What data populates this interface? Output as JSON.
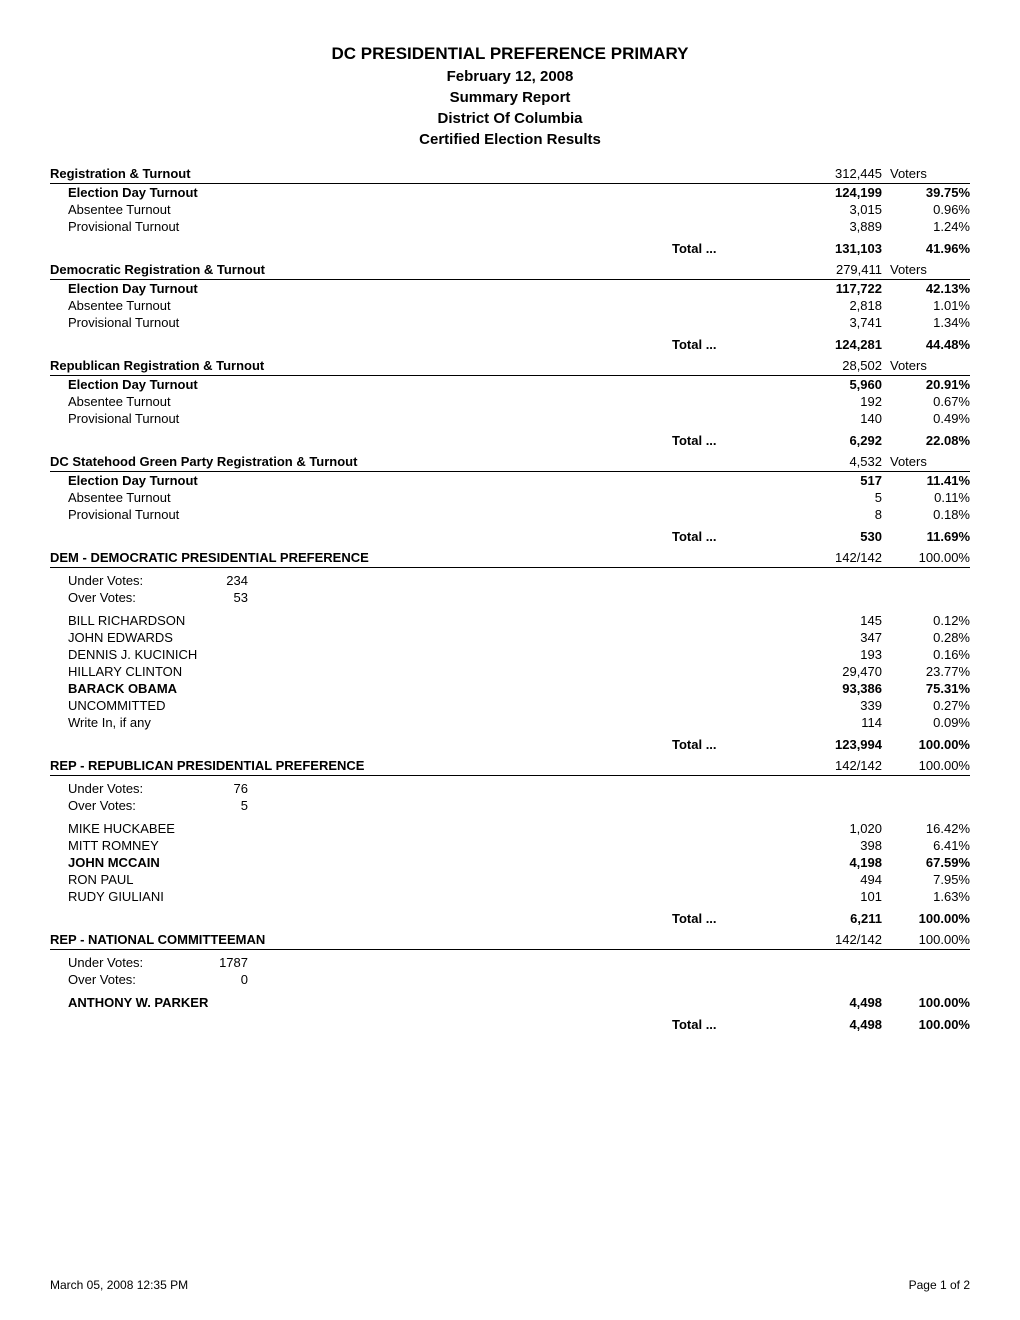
{
  "header": {
    "title": "DC PRESIDENTIAL PREFERENCE PRIMARY",
    "date": "February 12, 2008",
    "report": "Summary Report",
    "district": "District Of Columbia",
    "certified": "Certified  Election Results"
  },
  "total_label": "Total ...",
  "voters_label": "Voters",
  "sections": [
    {
      "title": "Registration & Turnout",
      "header_count": "312,445",
      "header_unit": "Voters",
      "rows": [
        {
          "label": "Election Day Turnout",
          "val": "124,199",
          "pct": "39.75%",
          "bold": true
        },
        {
          "label": "Absentee Turnout",
          "val": "3,015",
          "pct": "0.96%"
        },
        {
          "label": "Provisional Turnout",
          "val": "3,889",
          "pct": "1.24%"
        }
      ],
      "total": {
        "val": "131,103",
        "pct": "41.96%"
      }
    },
    {
      "title": "Democratic Registration & Turnout",
      "header_count": "279,411",
      "header_unit": "Voters",
      "rows": [
        {
          "label": "Election Day Turnout",
          "val": "117,722",
          "pct": "42.13%",
          "bold": true
        },
        {
          "label": "Absentee Turnout",
          "val": "2,818",
          "pct": "1.01%"
        },
        {
          "label": "Provisional Turnout",
          "val": "3,741",
          "pct": "1.34%"
        }
      ],
      "total": {
        "val": "124,281",
        "pct": "44.48%"
      }
    },
    {
      "title": "Republican Registration & Turnout",
      "header_count": "28,502",
      "header_unit": "Voters",
      "rows": [
        {
          "label": "Election Day Turnout",
          "val": "5,960",
          "pct": "20.91%",
          "bold": true
        },
        {
          "label": "Absentee Turnout",
          "val": "192",
          "pct": "0.67%"
        },
        {
          "label": "Provisional Turnout",
          "val": "140",
          "pct": "0.49%"
        }
      ],
      "total": {
        "val": "6,292",
        "pct": "22.08%"
      }
    },
    {
      "title": "DC Statehood Green Party Registration & Turnout",
      "header_count": "4,532",
      "header_unit": "Voters",
      "rows": [
        {
          "label": "Election Day Turnout",
          "val": "517",
          "pct": "11.41%",
          "bold": true
        },
        {
          "label": "Absentee Turnout",
          "val": "5",
          "pct": "0.11%"
        },
        {
          "label": "Provisional Turnout",
          "val": "8",
          "pct": "0.18%"
        }
      ],
      "total": {
        "val": "530",
        "pct": "11.69%"
      }
    },
    {
      "title": "DEM - DEMOCRATIC PRESIDENTIAL PREFERENCE",
      "header_count": "142/142",
      "header_unit": "100.00%",
      "header_unit_right": true,
      "meta": [
        {
          "label": "Under Votes:",
          "val": "234"
        },
        {
          "label": "Over Votes:",
          "val": "53"
        }
      ],
      "rows": [
        {
          "label": "BILL RICHARDSON",
          "val": "145",
          "pct": "0.12%"
        },
        {
          "label": "JOHN EDWARDS",
          "val": "347",
          "pct": "0.28%"
        },
        {
          "label": "DENNIS J. KUCINICH",
          "val": "193",
          "pct": "0.16%"
        },
        {
          "label": "HILLARY CLINTON",
          "val": "29,470",
          "pct": "23.77%"
        },
        {
          "label": "BARACK OBAMA",
          "val": "93,386",
          "pct": "75.31%",
          "bold": true
        },
        {
          "label": "UNCOMMITTED",
          "val": "339",
          "pct": "0.27%"
        },
        {
          "label": "Write In, if any",
          "val": "114",
          "pct": "0.09%"
        }
      ],
      "total": {
        "val": "123,994",
        "pct": "100.00%"
      }
    },
    {
      "title": "REP - REPUBLICAN PRESIDENTIAL PREFERENCE",
      "header_count": "142/142",
      "header_unit": "100.00%",
      "header_unit_right": true,
      "meta": [
        {
          "label": "Under Votes:",
          "val": "76"
        },
        {
          "label": "Over Votes:",
          "val": "5"
        }
      ],
      "rows": [
        {
          "label": "MIKE HUCKABEE",
          "val": "1,020",
          "pct": "16.42%"
        },
        {
          "label": "MITT ROMNEY",
          "val": "398",
          "pct": "6.41%"
        },
        {
          "label": "JOHN MCCAIN",
          "val": "4,198",
          "pct": "67.59%",
          "bold": true
        },
        {
          "label": "RON PAUL",
          "val": "494",
          "pct": "7.95%"
        },
        {
          "label": "RUDY GIULIANI",
          "val": "101",
          "pct": "1.63%"
        }
      ],
      "total": {
        "val": "6,211",
        "pct": "100.00%"
      }
    },
    {
      "title": "REP - NATIONAL COMMITTEEMAN",
      "header_count": "142/142",
      "header_unit": "100.00%",
      "header_unit_right": true,
      "meta": [
        {
          "label": "Under Votes:",
          "val": "1787"
        },
        {
          "label": "Over Votes:",
          "val": "0"
        }
      ],
      "rows": [
        {
          "label": "ANTHONY W. PARKER",
          "val": "4,498",
          "pct": "100.00%",
          "bold": true
        }
      ],
      "total": {
        "val": "4,498",
        "pct": "100.00%"
      }
    }
  ],
  "footer": {
    "left": "March 05, 2008 12:35 PM",
    "right": "Page 1 of 2"
  }
}
